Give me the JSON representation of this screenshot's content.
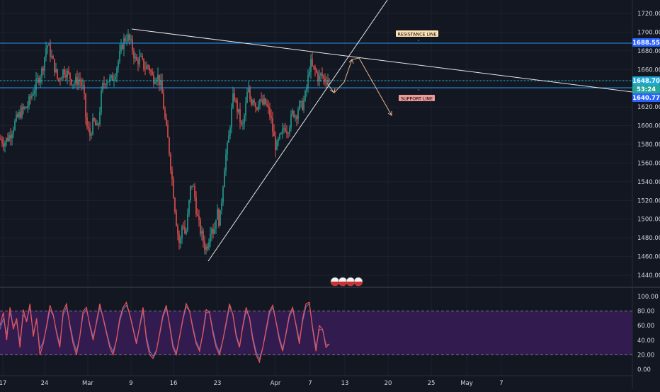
{
  "chart_data": [
    {
      "type": "candlestick",
      "y_ticks": [
        1720.0,
        1700.0,
        1680.0,
        1660.0,
        1640.0,
        1620.0,
        1600.0,
        1580.0,
        1560.0,
        1540.0,
        1520.0,
        1500.0,
        1480.0,
        1460.0,
        1440.0
      ],
      "y_tick_labels": [
        "1720.00",
        "1700.00",
        "1680.00",
        "1660.00",
        "1640.00",
        "1620.00",
        "1600.00",
        "1580.00",
        "1560.00",
        "1540.00",
        "1520.00",
        "1500.00",
        "1480.00",
        "1460.00",
        "1440.00"
      ],
      "ylim": [
        1430,
        1733
      ],
      "x_tick_labels": [
        "17",
        "24",
        "Mar",
        "9",
        "16",
        "23",
        "Apr",
        "7",
        "13",
        "20",
        "25",
        "May",
        "7"
      ],
      "series_path": [
        [
          0,
          1586
        ],
        [
          6,
          1582
        ],
        [
          14,
          1590
        ],
        [
          22,
          1605
        ],
        [
          30,
          1615
        ],
        [
          38,
          1620
        ],
        [
          46,
          1635
        ],
        [
          54,
          1650
        ],
        [
          60,
          1660
        ],
        [
          66,
          1688
        ],
        [
          70,
          1680
        ],
        [
          76,
          1665
        ],
        [
          82,
          1648
        ],
        [
          90,
          1660
        ],
        [
          96,
          1655
        ],
        [
          104,
          1645
        ],
        [
          112,
          1650
        ],
        [
          118,
          1638
        ],
        [
          122,
          1600
        ],
        [
          127,
          1590
        ],
        [
          132,
          1605
        ],
        [
          138,
          1595
        ],
        [
          144,
          1640
        ],
        [
          150,
          1650
        ],
        [
          156,
          1648
        ],
        [
          162,
          1655
        ],
        [
          168,
          1672
        ],
        [
          174,
          1690
        ],
        [
          180,
          1696
        ],
        [
          186,
          1685
        ],
        [
          192,
          1668
        ],
        [
          198,
          1672
        ],
        [
          204,
          1662
        ],
        [
          210,
          1664
        ],
        [
          216,
          1650
        ],
        [
          222,
          1655
        ],
        [
          228,
          1640
        ],
        [
          234,
          1600
        ],
        [
          238,
          1580
        ],
        [
          242,
          1550
        ],
        [
          246,
          1520
        ],
        [
          250,
          1490
        ],
        [
          254,
          1470
        ],
        [
          258,
          1500
        ],
        [
          262,
          1480
        ],
        [
          266,
          1510
        ],
        [
          270,
          1540
        ],
        [
          274,
          1530
        ],
        [
          278,
          1505
        ],
        [
          282,
          1490
        ],
        [
          286,
          1480
        ],
        [
          290,
          1468
        ],
        [
          294,
          1475
        ],
        [
          298,
          1495
        ],
        [
          302,
          1485
        ],
        [
          306,
          1510
        ],
        [
          310,
          1495
        ],
        [
          314,
          1530
        ],
        [
          318,
          1565
        ],
        [
          322,
          1580
        ],
        [
          326,
          1610
        ],
        [
          330,
          1635
        ],
        [
          334,
          1620
        ],
        [
          338,
          1610
        ],
        [
          342,
          1595
        ],
        [
          346,
          1615
        ],
        [
          350,
          1640
        ],
        [
          354,
          1625
        ],
        [
          358,
          1632
        ],
        [
          362,
          1618
        ],
        [
          366,
          1630
        ],
        [
          370,
          1622
        ],
        [
          374,
          1625
        ],
        [
          378,
          1618
        ],
        [
          382,
          1610
        ],
        [
          386,
          1590
        ],
        [
          390,
          1575
        ],
        [
          394,
          1585
        ],
        [
          398,
          1590
        ],
        [
          402,
          1600
        ],
        [
          406,
          1595
        ],
        [
          410,
          1605
        ],
        [
          414,
          1615
        ],
        [
          418,
          1610
        ],
        [
          422,
          1622
        ],
        [
          426,
          1620
        ],
        [
          430,
          1628
        ],
        [
          434,
          1645
        ],
        [
          438,
          1668
        ],
        [
          442,
          1660
        ],
        [
          446,
          1658
        ],
        [
          450,
          1650
        ],
        [
          454,
          1655
        ],
        [
          458,
          1648
        ],
        [
          462,
          1652
        ],
        [
          466,
          1645
        ]
      ],
      "oscillator": {
        "y_ticks": [
          100.0,
          80.0,
          60.0,
          40.0,
          20.0,
          0.0
        ],
        "y_tick_labels": [
          "100.00",
          "80.00",
          "60.00",
          "40.00",
          "20.00",
          "0.00"
        ],
        "band_upper": 80,
        "band_lower": 20,
        "fast_series": [
          60,
          78,
          40,
          85,
          55,
          70,
          30,
          82,
          65,
          90,
          45,
          70,
          20,
          35,
          60,
          88,
          75,
          50,
          30,
          80,
          90,
          60,
          35,
          20,
          45,
          80,
          85,
          60,
          40,
          65,
          90,
          70,
          50,
          30,
          20,
          40,
          70,
          85,
          92,
          75,
          55,
          35,
          60,
          85,
          40,
          20,
          15,
          25,
          50,
          75,
          88,
          60,
          30,
          20,
          45,
          70,
          90,
          80,
          55,
          35,
          25,
          50,
          82,
          78,
          50,
          30,
          20,
          40,
          65,
          90,
          75,
          45,
          30,
          60,
          85,
          70,
          40,
          20,
          10,
          30,
          55,
          80,
          88,
          65,
          40,
          25,
          50,
          75,
          85,
          60,
          35,
          70,
          90,
          92,
          55,
          25,
          60,
          55,
          30,
          35
        ],
        "slow_series": [
          55,
          70,
          48,
          78,
          60,
          65,
          38,
          75,
          68,
          85,
          50,
          66,
          28,
          38,
          58,
          82,
          74,
          52,
          34,
          75,
          86,
          62,
          40,
          25,
          45,
          76,
          82,
          62,
          44,
          63,
          85,
          72,
          52,
          34,
          24,
          40,
          66,
          82,
          88,
          76,
          57,
          38,
          58,
          80,
          45,
          25,
          18,
          26,
          48,
          72,
          84,
          62,
          34,
          22,
          44,
          68,
          86,
          80,
          58,
          38,
          28,
          48,
          78,
          78,
          54,
          34,
          23,
          40,
          62,
          86,
          76,
          48,
          32,
          58,
          80,
          72,
          44,
          24,
          14,
          30,
          52,
          76,
          85,
          66,
          44,
          28,
          48,
          72,
          82,
          62,
          40,
          66,
          86,
          90,
          58,
          30,
          55,
          54,
          34,
          34
        ]
      }
    }
  ],
  "labels": {
    "resistance": "RESISTANCE LINE",
    "support": "SUPPORT LINE"
  },
  "price_tags": {
    "p1": "1688.55",
    "p2": "1648.70",
    "p3": "53:24",
    "p4": "1640.77"
  },
  "colors": {
    "background": "#131722",
    "grid": "#1e222d",
    "bull": "#26a69a",
    "bear": "#ef5350",
    "resistance_line": "#2196f3",
    "trend_line": "#e6e6e6",
    "arrow": "#e7b48a",
    "tag_blue": "#2962ff",
    "tag_cyan": "#1fa8d6",
    "tag_green": "#26a69a",
    "label_res_bg": "#ffe0b2",
    "label_sup_bg": "#ef9a9a",
    "osc_band": "#311b4f",
    "osc_fast": "#ef5350",
    "osc_slow": "#5c6bc0"
  }
}
